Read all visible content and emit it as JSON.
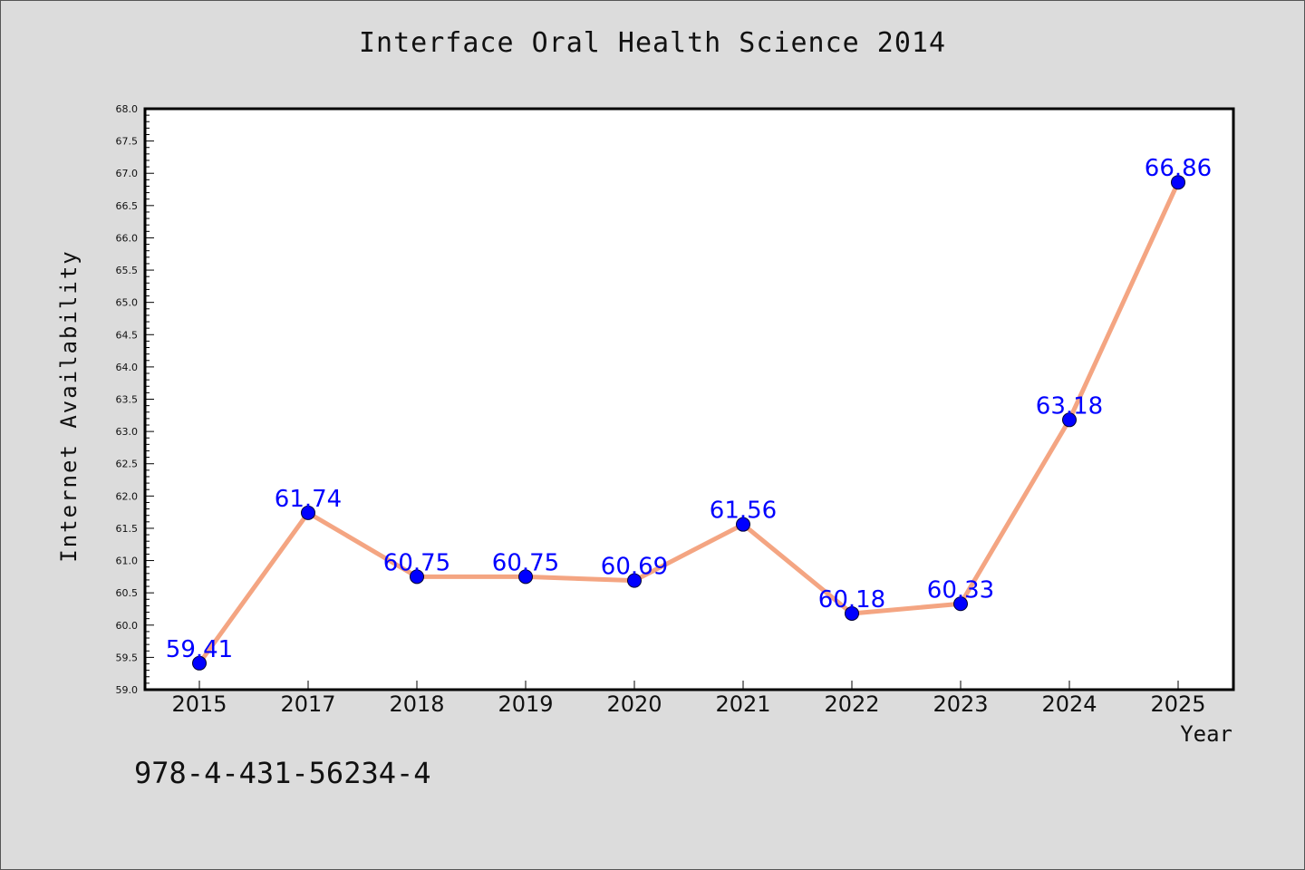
{
  "chart_data": {
    "type": "line",
    "title": "Interface Oral Health Science 2014",
    "xlabel": "Year",
    "ylabel": "Internet Availability",
    "categories": [
      "2015",
      "2017",
      "2018",
      "2019",
      "2020",
      "2021",
      "2022",
      "2023",
      "2024",
      "2025"
    ],
    "series": [
      {
        "values": [
          59.41,
          61.74,
          60.75,
          60.75,
          60.69,
          61.56,
          60.18,
          60.33,
          63.18,
          66.86
        ],
        "line_color": "#f4a582",
        "marker_color": "#0000ff",
        "label_color": "#0000ff"
      }
    ],
    "data_labels": [
      "59.41",
      "61.74",
      "60.75",
      "60.75",
      "60.69",
      "61.56",
      "60.18",
      "60.33",
      "63.18",
      "66.86"
    ],
    "ylim": [
      59.0,
      68.0
    ],
    "yticks": [
      "59.0",
      "59.5",
      "60.0",
      "60.5",
      "61.0",
      "61.5",
      "62.0",
      "62.5",
      "63.0",
      "63.5",
      "64.0",
      "64.5",
      "65.0",
      "65.5",
      "66.0",
      "66.5",
      "67.0",
      "67.5",
      "68.0"
    ],
    "grid": false,
    "legend": "none"
  },
  "footnote": "978-4-431-56234-4",
  "colors": {
    "background": "#dcdcdc",
    "plot_background": "#ffffff"
  }
}
